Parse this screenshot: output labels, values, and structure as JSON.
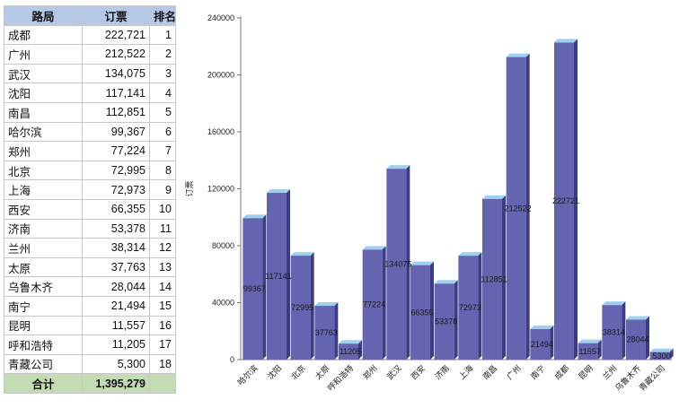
{
  "table": {
    "headers": [
      "路局",
      "订票",
      "排名"
    ],
    "rows": [
      {
        "name": "成都",
        "tickets": "222,721",
        "rank": "1"
      },
      {
        "name": "广州",
        "tickets": "212,522",
        "rank": "2"
      },
      {
        "name": "武汉",
        "tickets": "134,075",
        "rank": "3"
      },
      {
        "name": "沈阳",
        "tickets": "117,141",
        "rank": "4"
      },
      {
        "name": "南昌",
        "tickets": "112,851",
        "rank": "5"
      },
      {
        "name": "哈尔滨",
        "tickets": "99,367",
        "rank": "6"
      },
      {
        "name": "郑州",
        "tickets": "77,224",
        "rank": "7"
      },
      {
        "name": "北京",
        "tickets": "72,995",
        "rank": "8"
      },
      {
        "name": "上海",
        "tickets": "72,973",
        "rank": "9"
      },
      {
        "name": "西安",
        "tickets": "66,355",
        "rank": "10"
      },
      {
        "name": "济南",
        "tickets": "53,378",
        "rank": "11"
      },
      {
        "name": "兰州",
        "tickets": "38,314",
        "rank": "12"
      },
      {
        "name": "太原",
        "tickets": "37,763",
        "rank": "13"
      },
      {
        "name": "乌鲁木齐",
        "tickets": "28,044",
        "rank": "14"
      },
      {
        "name": "南宁",
        "tickets": "21,494",
        "rank": "15"
      },
      {
        "name": "昆明",
        "tickets": "11,557",
        "rank": "16"
      },
      {
        "name": "呼和浩特",
        "tickets": "11,205",
        "rank": "17"
      },
      {
        "name": "青藏公司",
        "tickets": "5,300",
        "rank": "18"
      }
    ],
    "total_label": "合计",
    "total_value": "1,395,279"
  },
  "colors": {
    "bar_front": "#6464b0",
    "bar_side": "#3c3c80",
    "bar_top": "#a0d0f0",
    "header_bg": "#b5c9e6",
    "total_bg": "#c4dcb3"
  },
  "chart_data": {
    "type": "bar",
    "categories": [
      "哈尔滨",
      "沈阳",
      "北京",
      "太原",
      "呼和浩特",
      "郑州",
      "武汉",
      "西安",
      "济南",
      "上海",
      "南昌",
      "广州",
      "南宁",
      "成都",
      "昆明",
      "兰州",
      "乌鲁木齐",
      "青藏公司"
    ],
    "values": [
      99367,
      117141,
      72995,
      37763,
      11205,
      77224,
      134075,
      66355,
      53378,
      72973,
      112851,
      212522,
      21494,
      222721,
      11557,
      38314,
      28044,
      5300
    ],
    "ylabel": "订票",
    "xlabel": "",
    "ylim": [
      0,
      240000
    ],
    "yticks": [
      0,
      40000,
      80000,
      120000,
      160000,
      200000,
      240000
    ],
    "grid": false,
    "legend": "none"
  }
}
